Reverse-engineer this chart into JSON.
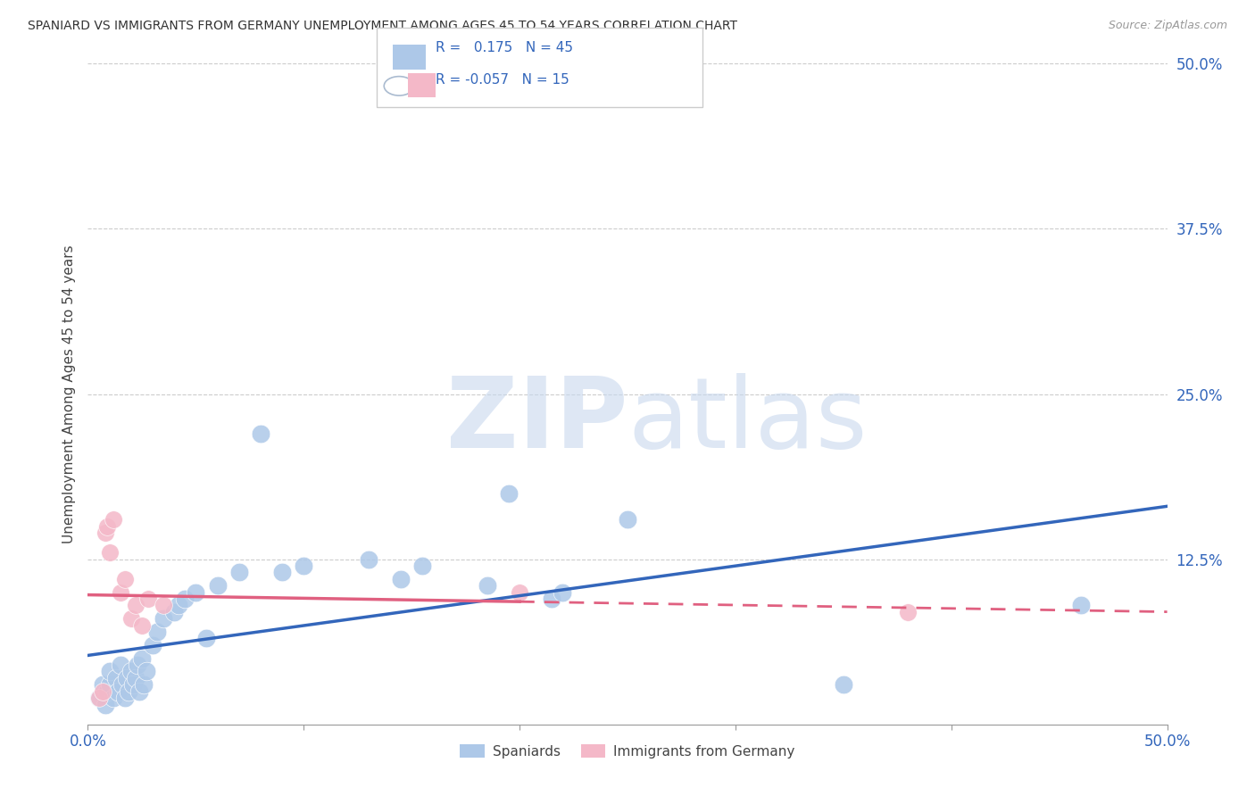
{
  "title": "SPANIARD VS IMMIGRANTS FROM GERMANY UNEMPLOYMENT AMONG AGES 45 TO 54 YEARS CORRELATION CHART",
  "source": "Source: ZipAtlas.com",
  "ylabel": "Unemployment Among Ages 45 to 54 years",
  "xlim": [
    0.0,
    0.5
  ],
  "ylim": [
    0.0,
    0.5
  ],
  "xticks": [
    0.0,
    0.1,
    0.2,
    0.3,
    0.4,
    0.5
  ],
  "yticks_right": [
    0.5,
    0.375,
    0.25,
    0.125
  ],
  "xticklabels": [
    "0.0%",
    "",
    "",
    "",
    "",
    "50.0%"
  ],
  "yticklabels_right": [
    "50.0%",
    "37.5%",
    "25.0%",
    "12.5%"
  ],
  "blue_R": 0.175,
  "blue_N": 45,
  "pink_R": -0.057,
  "pink_N": 15,
  "blue_color": "#adc8e8",
  "blue_line_color": "#3366bb",
  "pink_color": "#f4b8c8",
  "pink_line_color": "#e06080",
  "blue_scatter_x": [
    0.005,
    0.007,
    0.008,
    0.009,
    0.01,
    0.01,
    0.012,
    0.013,
    0.014,
    0.015,
    0.016,
    0.017,
    0.018,
    0.019,
    0.02,
    0.021,
    0.022,
    0.023,
    0.024,
    0.025,
    0.026,
    0.027,
    0.03,
    0.032,
    0.035,
    0.04,
    0.042,
    0.045,
    0.05,
    0.055,
    0.06,
    0.07,
    0.08,
    0.09,
    0.1,
    0.13,
    0.145,
    0.155,
    0.185,
    0.195,
    0.215,
    0.22,
    0.25,
    0.35,
    0.46
  ],
  "blue_scatter_y": [
    0.02,
    0.03,
    0.015,
    0.025,
    0.03,
    0.04,
    0.02,
    0.035,
    0.025,
    0.045,
    0.03,
    0.02,
    0.035,
    0.025,
    0.04,
    0.03,
    0.035,
    0.045,
    0.025,
    0.05,
    0.03,
    0.04,
    0.06,
    0.07,
    0.08,
    0.085,
    0.09,
    0.095,
    0.1,
    0.065,
    0.105,
    0.115,
    0.22,
    0.115,
    0.12,
    0.125,
    0.11,
    0.12,
    0.105,
    0.175,
    0.095,
    0.1,
    0.155,
    0.03,
    0.09
  ],
  "pink_scatter_x": [
    0.005,
    0.007,
    0.008,
    0.009,
    0.01,
    0.012,
    0.015,
    0.017,
    0.02,
    0.022,
    0.025,
    0.028,
    0.035,
    0.2,
    0.38
  ],
  "pink_scatter_y": [
    0.02,
    0.025,
    0.145,
    0.15,
    0.13,
    0.155,
    0.1,
    0.11,
    0.08,
    0.09,
    0.075,
    0.095,
    0.09,
    0.1,
    0.085
  ]
}
